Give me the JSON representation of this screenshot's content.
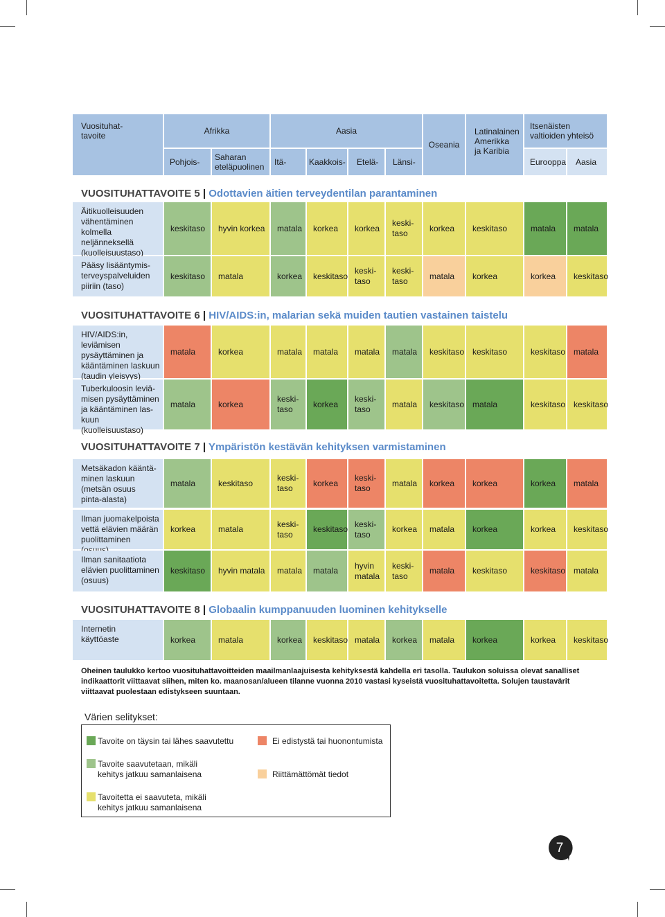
{
  "header": {
    "goal_col": "Vuosituhat-\ntavoite",
    "afrikka": "Afrikka",
    "aasia": "Aasia",
    "oseania": "Oseania",
    "latin": "Latinalainen\nAmerikka\nja Karibia",
    "itsenaisten": "Itsenäisten\nvaltioiden yhteisö",
    "pohjois": "Pohjois-",
    "saharan": "Saharan\neteläpuolinen",
    "ita": "Itä-",
    "kaakkois": "Kaakkois-",
    "etela": "Etelä-",
    "lansi": "Länsi-",
    "eurooppa": "Eurooppa",
    "aasia2": "Aasia"
  },
  "sections": {
    "s5": {
      "num": "VUOSITUHATTAVOITE 5",
      "title": "Odottavien äitien terveydentilan parantaminen"
    },
    "s6": {
      "num": "VUOSITUHATTAVOITE 6",
      "title": "HIV/AIDS:in, malarian sekä muiden tautien vastainen taistelu"
    },
    "s7": {
      "num": "VUOSITUHATTAVOITE 7",
      "title": "Ympäristön kestävän kehityksen varmistaminen"
    },
    "s8": {
      "num": "VUOSITUHATTAVOITE 8",
      "title": "Globaalin kumppanuuden luominen kehitykselle"
    }
  },
  "rows": [
    {
      "label": "Äitikuolleisuuden\nvähentäminen kolmella\nneljänneksellä\n(kuolleisuustaso)",
      "cells": [
        [
          "keskitaso",
          "lg"
        ],
        [
          "hyvin korkea",
          "ye"
        ],
        [
          "matala",
          "lg"
        ],
        [
          "korkea",
          "ye"
        ],
        [
          "korkea",
          "ye"
        ],
        [
          "keski-\ntaso",
          "ye"
        ],
        [
          "korkea",
          "ye"
        ],
        [
          "keskitaso",
          "ye"
        ],
        [
          "matala",
          "dg"
        ],
        [
          "matala",
          "dg"
        ]
      ]
    },
    {
      "label": "Pääsy lisääntymis-\nterveyspalveluiden\npiiriin (taso)",
      "cells": [
        [
          "keskitaso",
          "lg"
        ],
        [
          "matala",
          "ye"
        ],
        [
          "korkea",
          "lg"
        ],
        [
          "keskitaso",
          "ye"
        ],
        [
          "keski-\ntaso",
          "ye"
        ],
        [
          "keski-\ntaso",
          "ye"
        ],
        [
          "matala",
          "pk"
        ],
        [
          "korkea",
          "ye"
        ],
        [
          "korkea",
          "pk"
        ],
        [
          "keskitaso",
          "ye"
        ]
      ]
    },
    {
      "label": "HIV/AIDS:in, leviämisen\npysäyttäminen ja\nkääntäminen laskuun\n(taudin yleisyys)",
      "cells": [
        [
          "matala",
          "re"
        ],
        [
          "korkea",
          "ye"
        ],
        [
          "matala",
          "ye"
        ],
        [
          "matala",
          "ye"
        ],
        [
          "matala",
          "ye"
        ],
        [
          "matala",
          "lg"
        ],
        [
          "keskitaso",
          "ye"
        ],
        [
          "keskitaso",
          "ye"
        ],
        [
          "keskitaso",
          "ye"
        ],
        [
          "matala",
          "re"
        ]
      ]
    },
    {
      "label": "Tuberkuloosin leviä-\nmisen pysäyttäminen\nja kääntäminen las-\nkuun (kuolleisuustaso)",
      "cells": [
        [
          "matala",
          "lg"
        ],
        [
          "korkea",
          "re"
        ],
        [
          "keski-\ntaso",
          "lg"
        ],
        [
          "korkea",
          "dg"
        ],
        [
          "keski-\ntaso",
          "lg"
        ],
        [
          "matala",
          "ye"
        ],
        [
          "keskitaso",
          "lg"
        ],
        [
          "matala",
          "dg"
        ],
        [
          "keskitaso",
          "ye"
        ],
        [
          "keskitaso",
          "ye"
        ]
      ]
    },
    {
      "label": "Metsäkadon kääntä-\nminen laskuun\n(metsän osuus\npinta-alasta)",
      "cells": [
        [
          "matala",
          "lg"
        ],
        [
          "keskitaso",
          "ye"
        ],
        [
          "keski-\ntaso",
          "ye"
        ],
        [
          "korkea",
          "re"
        ],
        [
          "keski-\ntaso",
          "re"
        ],
        [
          "matala",
          "ye"
        ],
        [
          "korkea",
          "re"
        ],
        [
          "korkea",
          "re"
        ],
        [
          "korkea",
          "dg"
        ],
        [
          "matala",
          "re"
        ]
      ]
    },
    {
      "label": "Ilman juomakelpoista\nvettä elävien määrän\npuolittaminen (osuus)",
      "cells": [
        [
          "korkea",
          "ye"
        ],
        [
          "matala",
          "ye"
        ],
        [
          "keski-\ntaso",
          "ye"
        ],
        [
          "keskitaso",
          "dg"
        ],
        [
          "keski-\ntaso",
          "lg"
        ],
        [
          "korkea",
          "ye"
        ],
        [
          "matala",
          "ye"
        ],
        [
          "korkea",
          "dg"
        ],
        [
          "korkea",
          "ye"
        ],
        [
          "keskitaso",
          "ye"
        ]
      ]
    },
    {
      "label": "Ilman sanitaatiota\nelävien puolittaminen\n(osuus)",
      "cells": [
        [
          "keskitaso",
          "dg"
        ],
        [
          "hyvin matala",
          "ye"
        ],
        [
          "matala",
          "ye"
        ],
        [
          "matala",
          "lg"
        ],
        [
          "hyvin\nmatala",
          "ye"
        ],
        [
          "keski-\ntaso",
          "ye"
        ],
        [
          "matala",
          "re"
        ],
        [
          "keskitaso",
          "ye"
        ],
        [
          "keskitaso",
          "re"
        ],
        [
          "matala",
          "ye"
        ]
      ]
    },
    {
      "label": "Internetin\nkäyttöaste",
      "cells": [
        [
          "korkea",
          "lg"
        ],
        [
          "matala",
          "ye"
        ],
        [
          "korkea",
          "lg"
        ],
        [
          "keskitaso",
          "ye"
        ],
        [
          "matala",
          "ye"
        ],
        [
          "korkea",
          "lg"
        ],
        [
          "matala",
          "ye"
        ],
        [
          "korkea",
          "dg"
        ],
        [
          "korkea",
          "ye"
        ],
        [
          "keskitaso",
          "ye"
        ]
      ]
    }
  ],
  "note": "Oheinen taulukko kertoo vuosituhattavoitteiden maailmanlaajuisesta kehityksestä kahdella eri tasolla. Taulukon soluissa olevat sanalliset indikaattorit viittaavat siihen, miten ko. maanosan/alueen tilanne vuonna 2010 vastasi kyseistä vuosituhattavoitetta. Solujen taustavärit viittaavat puolestaan edistykseen suuntaan.",
  "legend": {
    "title": "Värien selitykset:",
    "items": {
      "dg": "Tavoite on täysin tai lähes saavutettu",
      "re": "Ei edistystä tai huonontumista",
      "lg": "Tavoite saavutetaan, mikäli\nkehitys jatkuu samanlaisena",
      "pk": "Riittämättömät tiedot",
      "ye": "Tavoitetta ei saavuteta, mikäli\nkehitys jatkuu samanlaisena"
    }
  },
  "page_number": "7",
  "colors": {
    "dark_green": "#6aa857",
    "light_green": "#9ec48b",
    "yellow": "#e6e06d",
    "red": "#ed8566",
    "peach": "#f9d09c",
    "header_blue": "#a7c2e2",
    "light_blue": "#d4e2f2",
    "title_blue": "#5b8bc9"
  }
}
